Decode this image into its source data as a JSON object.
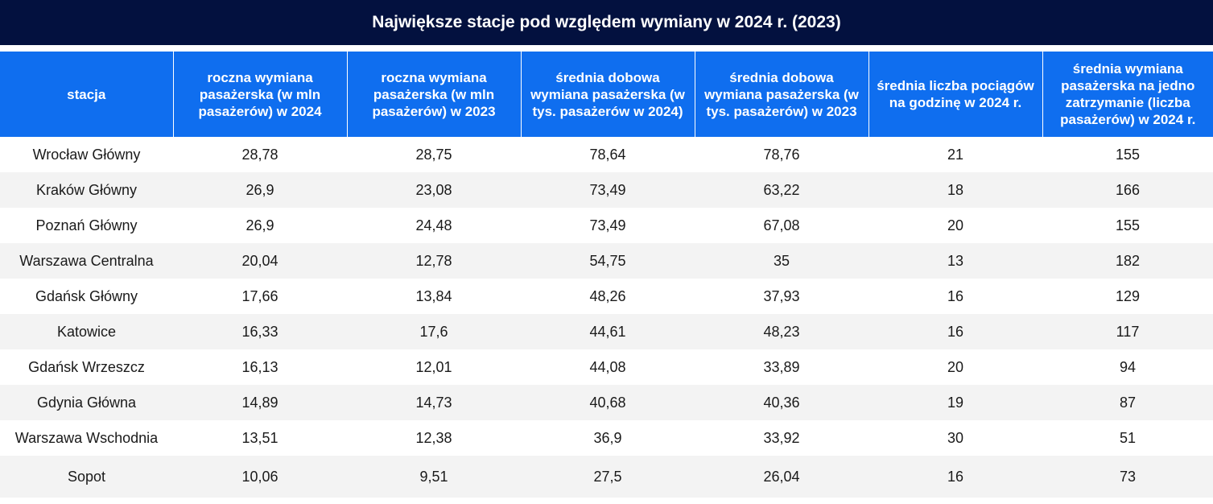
{
  "title": "Największe stacje pod względem wymiany w 2024 r. (2023)",
  "colors": {
    "title_bg": "#03113f",
    "header_bg": "#0f6eef",
    "row_alt_bg": "#f3f3f3"
  },
  "table": {
    "headers": [
      "stacja",
      "roczna wymiana pasażerska (w mln pasażerów) w 2024",
      "roczna wymiana pasażerska  (w mln pasażerów) w 2023",
      "średnia dobowa wymiana pasażerska (w tys. pasażerów w 2024)",
      "średnia dobowa wymiana pasażerska (w tys. pasażerów) w 2023",
      "średnia liczba pociągów na godzinę w 2024 r.",
      "średnia wymiana pasażerska na jedno zatrzymanie (liczba pasażerów) w 2024 r."
    ],
    "rows": [
      [
        "Wrocław Główny",
        "28,78",
        "28,75",
        "78,64",
        "78,76",
        "21",
        "155"
      ],
      [
        "Kraków Główny",
        "26,9",
        "23,08",
        "73,49",
        "63,22",
        "18",
        "166"
      ],
      [
        "Poznań Główny",
        "26,9",
        "24,48",
        "73,49",
        "67,08",
        "20",
        "155"
      ],
      [
        "Warszawa Centralna",
        "20,04",
        "12,78",
        "54,75",
        "35",
        "13",
        "182"
      ],
      [
        "Gdańsk Główny",
        "17,66",
        "13,84",
        "48,26",
        "37,93",
        "16",
        "129"
      ],
      [
        "Katowice",
        "16,33",
        "17,6",
        "44,61",
        "48,23",
        "16",
        "117"
      ],
      [
        "Gdańsk Wrzeszcz",
        "16,13",
        "12,01",
        "44,08",
        "33,89",
        "20",
        "94"
      ],
      [
        "Gdynia Główna",
        "14,89",
        "14,73",
        "40,68",
        "40,36",
        "19",
        "87"
      ],
      [
        "Warszawa Wschodnia",
        "13,51",
        "12,38",
        "36,9",
        "33,92",
        "30",
        "51"
      ],
      [
        "Sopot",
        "10,06",
        "9,51",
        "27,5",
        "26,04",
        "16",
        "73"
      ]
    ]
  }
}
